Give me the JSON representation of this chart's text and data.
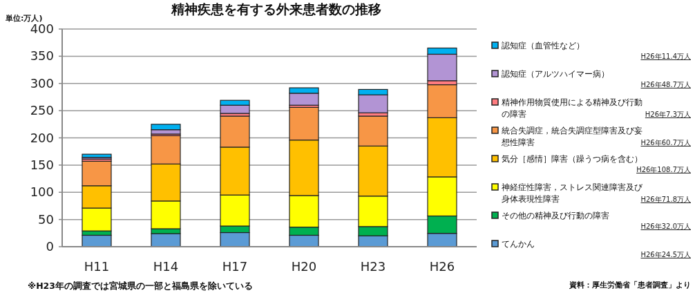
{
  "chart_data": {
    "type": "bar",
    "stacked": true,
    "title": "精神疾患を有する外来患者数の推移",
    "ylabel": "単位:万人)",
    "categories": [
      "H11",
      "H14",
      "H17",
      "H20",
      "H23",
      "H26"
    ],
    "ylim": [
      0,
      400
    ],
    "yticks": [
      0,
      50,
      100,
      150,
      200,
      250,
      300,
      350,
      400
    ],
    "grid": "y",
    "legend": "right",
    "series": [
      {
        "name": "てんかん",
        "color": "#5b9bd5",
        "values": [
          21,
          24,
          26,
          21,
          20,
          24.5
        ]
      },
      {
        "name": "その他の精神及び行動の障害",
        "color": "#00b050",
        "values": [
          8,
          9,
          12,
          15,
          17,
          32.0
        ]
      },
      {
        "name": "神経症性障害，ストレス関連障害及び身体表現性障害",
        "color": "#ffff00",
        "values": [
          42,
          51,
          57,
          58,
          56,
          71.8
        ]
      },
      {
        "name": "気分［感情］障害（躁うつ病を含む）",
        "color": "#ffc000",
        "values": [
          41,
          68,
          88,
          102,
          92,
          108.7
        ]
      },
      {
        "name": "統合失調症，統合失調症型障害及び妄想性障害",
        "color": "#f79646",
        "values": [
          45,
          52,
          57,
          60,
          55,
          60.7
        ]
      },
      {
        "name": "精神作用物質使用による精神及び行動の障害",
        "color": "#ff7c80",
        "values": [
          4,
          3,
          5,
          4,
          6,
          7.3
        ]
      },
      {
        "name": "認知症（アルツハイマー病）",
        "color": "#b294d4",
        "values": [
          3,
          8,
          15,
          22,
          33,
          48.7
        ]
      },
      {
        "name": "認知症（血管性など）",
        "color": "#00b0f0",
        "values": [
          6,
          10,
          9,
          10,
          10,
          11.4
        ]
      }
    ],
    "annotations": [
      "H26年24.5万人",
      "H26年32.0万人",
      "H26年71.8万人",
      "H26年108.7万人",
      "H26年60.7万人",
      "H26年7.3万人",
      "H26年48.7万人",
      "H26年11.4万人",
      "※H23年の調査では宮城県の一部と福島県を除いている",
      "資料：厚生労働省「患者調査」より"
    ]
  }
}
